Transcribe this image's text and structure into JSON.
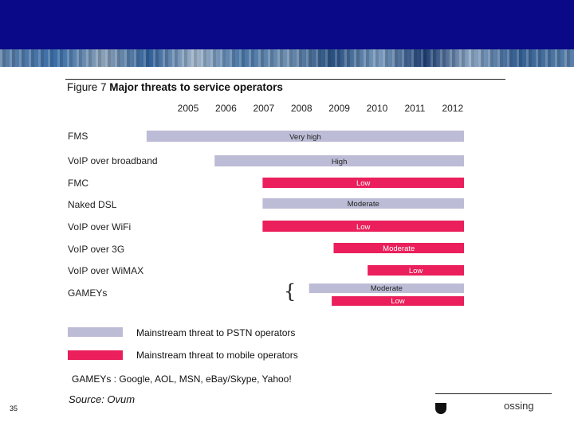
{
  "figure": {
    "label": "Figure 7",
    "title": "Major threats to service operators"
  },
  "chart_data": {
    "type": "bar",
    "subtype": "gantt",
    "years": [
      "2005",
      "2006",
      "2007",
      "2008",
      "2009",
      "2010",
      "2011",
      "2012"
    ],
    "rows": [
      {
        "category": "FMS",
        "start": 2003.9,
        "end": 2012.3,
        "level": "Very high",
        "threat_type": "pstn"
      },
      {
        "category": "VoIP over broadband",
        "start": 2005.7,
        "end": 2012.3,
        "level": "High",
        "threat_type": "pstn"
      },
      {
        "category": "FMC",
        "start": 2006.97,
        "end": 2012.3,
        "level": "Low",
        "threat_type": "mobile"
      },
      {
        "category": "Naked DSL",
        "start": 2006.97,
        "end": 2012.3,
        "level": "Moderate",
        "threat_type": "pstn"
      },
      {
        "category": "VoIP over WiFi",
        "start": 2006.97,
        "end": 2012.3,
        "level": "Low",
        "threat_type": "mobile"
      },
      {
        "category": "VoIP over 3G",
        "start": 2008.85,
        "end": 2012.3,
        "level": "Moderate",
        "threat_type": "mobile"
      },
      {
        "category": "VoIP over WiMAX",
        "start": 2009.75,
        "end": 2012.3,
        "level": "Low",
        "threat_type": "mobile"
      },
      {
        "category": "GAMEYs",
        "start": 2008.2,
        "end": 2012.3,
        "level": "Moderate",
        "threat_type": "pstn",
        "sub": true
      },
      {
        "category": "GAMEYs",
        "start": 2008.8,
        "end": 2012.3,
        "level": "Low",
        "threat_type": "mobile",
        "sub": true
      }
    ],
    "legend": [
      {
        "key": "pstn",
        "label": "Mainstream threat to PSTN operators",
        "color": "#bcbcd6"
      },
      {
        "key": "mobile",
        "label": "Mainstream threat to mobile operators",
        "color": "#ea1f5b"
      }
    ],
    "colors": {
      "pstn": "#bcbcd6",
      "mobile": "#ea1f5b"
    }
  },
  "notes": {
    "gameys": "GAMEYs : Google, AOL, MSN, eBay/Skype, Yahoo!",
    "source": "Source: Ovum"
  },
  "footer": {
    "page_number": "35",
    "logo_text": "ossing",
    "logo_name": "company-logo"
  },
  "decor": {
    "bracket": "{"
  }
}
